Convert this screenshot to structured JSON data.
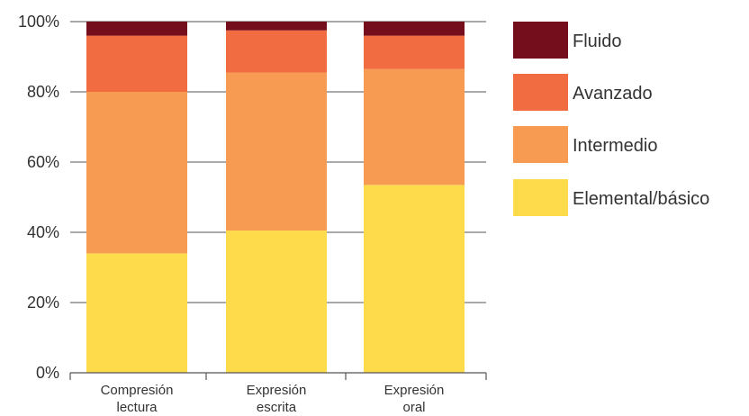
{
  "chart_data": {
    "type": "bar",
    "stacked": true,
    "title": "",
    "xlabel": "",
    "ylabel": "",
    "ylim": [
      0,
      100
    ],
    "y_ticks": [
      "0%",
      "20%",
      "40%",
      "60%",
      "80%",
      "100%"
    ],
    "y_tick_values": [
      0,
      20,
      40,
      60,
      80,
      100
    ],
    "grid": true,
    "legend_position": "right",
    "categories": [
      [
        "Compresión",
        "lectura"
      ],
      [
        "Expresión",
        "escrita"
      ],
      [
        "Expresión",
        "oral"
      ]
    ],
    "series": [
      {
        "name": "Elemental/básico",
        "color": "#fddb4a",
        "values": [
          34,
          40.5,
          53.5
        ]
      },
      {
        "name": "Intermedio",
        "color": "#f79a52",
        "values": [
          46,
          45,
          33
        ]
      },
      {
        "name": "Avanzado",
        "color": "#f26c42",
        "values": [
          16,
          12,
          9.5
        ]
      },
      {
        "name": "Fluido",
        "color": "#740e1d",
        "values": [
          4,
          2.5,
          4
        ]
      }
    ],
    "legend_order": [
      "Fluido",
      "Avanzado",
      "Intermedio",
      "Elemental/básico"
    ]
  }
}
